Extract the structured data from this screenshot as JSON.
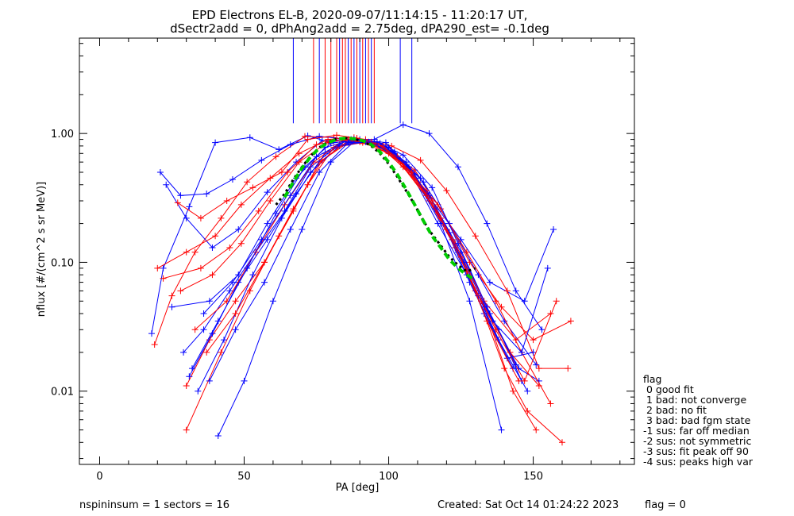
{
  "chart_data": {
    "type": "line",
    "title_line1": "EPD Electrons EL-B, 2020-09-07/11:14:15 - 11:20:17 UT,",
    "title_line2": "dSectr2add = 0, dPhAng2add = 2.75deg, dPA290_est=  -0.1deg",
    "xlabel": "PA [deg]",
    "ylabel": "nflux [#/(cm^2 s sr MeV)]",
    "xlim": [
      -7,
      185
    ],
    "ylim": [
      0.0027,
      5.5
    ],
    "yscale": "log",
    "x_ticks": [
      {
        "value": 0,
        "label": "0"
      },
      {
        "value": 50,
        "label": "50"
      },
      {
        "value": 100,
        "label": "100"
      },
      {
        "value": 150,
        "label": "150"
      }
    ],
    "y_ticks": [
      {
        "value": 0.01,
        "label": "0.01"
      },
      {
        "value": 0.1,
        "label": "0.10"
      },
      {
        "value": 1.0,
        "label": "1.00"
      }
    ],
    "series": [
      {
        "color": "#0000ff",
        "marker": "+",
        "x": [
          18,
          22,
          31,
          40,
          52,
          62,
          72,
          80,
          90,
          99,
          108,
          117,
          127,
          138,
          146
        ],
        "y": [
          0.028,
          0.09,
          0.27,
          0.85,
          0.93,
          0.75,
          0.96,
          0.85,
          0.88,
          0.8,
          0.48,
          0.2,
          0.08,
          0.03,
          0.012
        ]
      },
      {
        "color": "#ff0000",
        "marker": "+",
        "x": [
          19,
          25,
          33,
          42,
          51,
          61,
          71,
          81,
          90,
          100,
          109,
          118,
          128,
          139,
          150,
          163
        ],
        "y": [
          0.023,
          0.055,
          0.12,
          0.22,
          0.42,
          0.66,
          0.95,
          0.93,
          0.86,
          0.74,
          0.52,
          0.26,
          0.1,
          0.045,
          0.025,
          0.035
        ]
      },
      {
        "color": "#0000ff",
        "marker": "+",
        "x": [
          21,
          28,
          37,
          46,
          56,
          66,
          76,
          86,
          95,
          105,
          114,
          124,
          134,
          144,
          153
        ],
        "y": [
          0.5,
          0.33,
          0.34,
          0.44,
          0.62,
          0.82,
          0.95,
          0.9,
          0.9,
          1.17,
          1.0,
          0.55,
          0.2,
          0.06,
          0.03
        ]
      },
      {
        "color": "#0000ff",
        "marker": "+",
        "x": [
          23,
          30,
          39,
          48,
          58,
          68,
          77,
          87,
          97,
          106,
          115,
          125,
          135,
          147,
          157
        ],
        "y": [
          0.4,
          0.22,
          0.13,
          0.18,
          0.35,
          0.6,
          0.88,
          0.9,
          0.78,
          0.55,
          0.3,
          0.15,
          0.07,
          0.05,
          0.18
        ]
      },
      {
        "color": "#ff0000",
        "marker": "+",
        "x": [
          27,
          35,
          44,
          53,
          63,
          72,
          82,
          92,
          101,
          111,
          120,
          130,
          141,
          152,
          162
        ],
        "y": [
          0.29,
          0.22,
          0.3,
          0.38,
          0.5,
          0.9,
          0.97,
          0.9,
          0.8,
          0.62,
          0.36,
          0.16,
          0.06,
          0.015,
          0.015
        ]
      },
      {
        "color": "#0000ff",
        "marker": "+",
        "x": [
          29,
          36,
          45,
          54,
          64,
          73,
          83,
          93,
          102,
          112,
          121,
          131,
          140,
          151
        ],
        "y": [
          0.02,
          0.03,
          0.06,
          0.12,
          0.25,
          0.55,
          0.82,
          0.86,
          0.7,
          0.42,
          0.2,
          0.08,
          0.035,
          0.016
        ]
      },
      {
        "color": "#ff0000",
        "marker": "+",
        "x": [
          30,
          38,
          47,
          57,
          67,
          76,
          86,
          96,
          105,
          114,
          123,
          133,
          143,
          151
        ],
        "y": [
          0.011,
          0.025,
          0.05,
          0.1,
          0.25,
          0.6,
          0.85,
          0.82,
          0.55,
          0.3,
          0.13,
          0.045,
          0.01,
          0.005
        ]
      },
      {
        "color": "#0000ff",
        "marker": "+",
        "x": [
          31,
          39,
          48,
          58,
          68,
          78,
          87,
          97,
          106,
          115,
          125,
          135,
          145,
          152
        ],
        "y": [
          0.013,
          0.028,
          0.07,
          0.15,
          0.34,
          0.7,
          0.88,
          0.84,
          0.6,
          0.3,
          0.12,
          0.04,
          0.015,
          0.012
        ]
      },
      {
        "color": "#ff0000",
        "marker": "+",
        "x": [
          20,
          30,
          40,
          49,
          59,
          69,
          79,
          88,
          98,
          107,
          117,
          127,
          137,
          146,
          156
        ],
        "y": [
          0.09,
          0.12,
          0.16,
          0.28,
          0.45,
          0.7,
          0.9,
          0.93,
          0.78,
          0.52,
          0.28,
          0.12,
          0.05,
          0.02,
          0.008
        ]
      },
      {
        "color": "#0000ff",
        "marker": "+",
        "x": [
          41,
          50,
          60,
          70,
          80,
          89,
          99,
          108,
          118,
          128,
          139
        ],
        "y": [
          0.0045,
          0.012,
          0.05,
          0.18,
          0.6,
          0.9,
          0.85,
          0.5,
          0.2,
          0.05,
          0.005
        ]
      },
      {
        "color": "#ff0000",
        "marker": "+",
        "x": [
          30,
          42,
          52,
          62,
          72,
          81,
          91,
          100,
          110,
          120,
          130,
          140,
          148,
          160
        ],
        "y": [
          0.005,
          0.02,
          0.06,
          0.16,
          0.4,
          0.78,
          0.85,
          0.7,
          0.42,
          0.18,
          0.06,
          0.015,
          0.007,
          0.004
        ]
      },
      {
        "color": "#0000ff",
        "marker": "+",
        "x": [
          34,
          43,
          53,
          63,
          73,
          83,
          92,
          102,
          111,
          121,
          131,
          141,
          150
        ],
        "y": [
          0.01,
          0.025,
          0.08,
          0.22,
          0.5,
          0.8,
          0.86,
          0.72,
          0.45,
          0.17,
          0.055,
          0.018,
          0.02
        ]
      },
      {
        "color": "#ff0000",
        "marker": "+",
        "x": [
          33,
          44,
          54,
          64,
          74,
          84,
          94,
          103,
          113,
          122,
          132,
          142,
          152
        ],
        "y": [
          0.03,
          0.05,
          0.12,
          0.28,
          0.6,
          0.88,
          0.86,
          0.66,
          0.36,
          0.15,
          0.05,
          0.02,
          0.011
        ]
      },
      {
        "color": "#0000ff",
        "marker": "+",
        "x": [
          36,
          46,
          56,
          66,
          75,
          85,
          95,
          104,
          114,
          124,
          133,
          143
        ],
        "y": [
          0.04,
          0.07,
          0.15,
          0.33,
          0.66,
          0.87,
          0.84,
          0.62,
          0.33,
          0.12,
          0.04,
          0.015
        ]
      },
      {
        "color": "#ff0000",
        "marker": "+",
        "x": [
          22,
          35,
          45,
          55,
          65,
          75,
          85,
          94,
          104,
          113,
          123,
          133,
          144,
          156
        ],
        "y": [
          0.075,
          0.09,
          0.13,
          0.25,
          0.5,
          0.82,
          0.9,
          0.84,
          0.6,
          0.33,
          0.14,
          0.05,
          0.025,
          0.04
        ]
      },
      {
        "color": "#0000ff",
        "marker": "+",
        "x": [
          32,
          41,
          51,
          61,
          71,
          80,
          90,
          100,
          109,
          119,
          128,
          138,
          148
        ],
        "y": [
          0.015,
          0.035,
          0.09,
          0.24,
          0.55,
          0.84,
          0.9,
          0.78,
          0.48,
          0.2,
          0.07,
          0.025,
          0.01
        ]
      },
      {
        "color": "#ff0000",
        "marker": "+",
        "x": [
          37,
          47,
          57,
          67,
          77,
          86,
          96,
          105,
          115,
          125,
          134,
          145
        ],
        "y": [
          0.02,
          0.04,
          0.1,
          0.26,
          0.62,
          0.88,
          0.84,
          0.58,
          0.3,
          0.11,
          0.035,
          0.012
        ]
      },
      {
        "color": "#0000ff",
        "marker": "+",
        "x": [
          25,
          38,
          48,
          58,
          68,
          78,
          88,
          97,
          107,
          116,
          126,
          136,
          146,
          155
        ],
        "y": [
          0.045,
          0.05,
          0.08,
          0.2,
          0.45,
          0.78,
          0.9,
          0.82,
          0.55,
          0.26,
          0.1,
          0.035,
          0.02,
          0.09
        ]
      },
      {
        "color": "#ff0000",
        "marker": "+",
        "x": [
          28,
          39,
          49,
          59,
          69,
          79,
          89,
          98,
          108,
          118,
          127,
          137,
          147,
          158
        ],
        "y": [
          0.06,
          0.08,
          0.14,
          0.3,
          0.6,
          0.86,
          0.92,
          0.8,
          0.5,
          0.22,
          0.085,
          0.03,
          0.012,
          0.05
        ]
      },
      {
        "color": "#0000ff",
        "marker": "+",
        "x": [
          38,
          47,
          57,
          66,
          76,
          86,
          96,
          105,
          115,
          124,
          134,
          144
        ],
        "y": [
          0.012,
          0.03,
          0.07,
          0.18,
          0.5,
          0.85,
          0.86,
          0.68,
          0.38,
          0.14,
          0.045,
          0.016
        ]
      }
    ],
    "fit_curve": {
      "color": "#00cc00",
      "style": "dashed",
      "x": [
        64,
        67,
        70,
        73,
        76,
        79,
        82,
        85,
        88,
        91,
        94,
        97,
        100,
        103,
        106,
        109,
        112,
        115,
        118,
        121,
        124,
        127,
        129
      ],
      "y": [
        0.32,
        0.42,
        0.54,
        0.66,
        0.77,
        0.85,
        0.9,
        0.92,
        0.91,
        0.88,
        0.82,
        0.72,
        0.6,
        0.48,
        0.37,
        0.28,
        0.21,
        0.16,
        0.13,
        0.105,
        0.09,
        0.08,
        0.075
      ]
    },
    "fit_curve_black": {
      "color": "#000000",
      "style": "dashed",
      "x": [
        61,
        64,
        67,
        70,
        73,
        76,
        79,
        82,
        85,
        88,
        91,
        94,
        97,
        100,
        103,
        106,
        109,
        112,
        115,
        118,
        121,
        124,
        127,
        130
      ],
      "y": [
        0.28,
        0.34,
        0.44,
        0.55,
        0.67,
        0.78,
        0.86,
        0.91,
        0.92,
        0.91,
        0.87,
        0.8,
        0.7,
        0.58,
        0.46,
        0.36,
        0.28,
        0.21,
        0.165,
        0.135,
        0.11,
        0.095,
        0.085,
        0.09
      ]
    },
    "vertical_lines": {
      "top": 5.5,
      "blue": [
        {
          "x": 67,
          "y0": 1.2
        },
        {
          "x": 76,
          "y0": 1.2
        },
        {
          "x": 83,
          "y0": 1.2
        },
        {
          "x": 86,
          "y0": 1.2
        },
        {
          "x": 88,
          "y0": 1.2
        },
        {
          "x": 90,
          "y0": 1.2
        },
        {
          "x": 92,
          "y0": 1.2
        },
        {
          "x": 94,
          "y0": 1.2
        },
        {
          "x": 104,
          "y0": 1.2
        },
        {
          "x": 108,
          "y0": 1.2
        }
      ],
      "red": [
        {
          "x": 74,
          "y0": 1.2
        },
        {
          "x": 78,
          "y0": 1.2
        },
        {
          "x": 80,
          "y0": 1.2
        },
        {
          "x": 82,
          "y0": 1.2
        },
        {
          "x": 84,
          "y0": 1.2
        },
        {
          "x": 85,
          "y0": 1.2
        },
        {
          "x": 87,
          "y0": 1.2
        },
        {
          "x": 89,
          "y0": 1.2
        },
        {
          "x": 91,
          "y0": 1.2
        },
        {
          "x": 93,
          "y0": 1.2
        },
        {
          "x": 95,
          "y0": 1.2
        }
      ]
    },
    "legend_title": "flag",
    "legend": [
      " 0 good fit",
      " 1 bad: not converge",
      " 2 bad: no fit",
      " 3 bad: bad fgm state",
      "-1 sus: far off median",
      "-2 sus: not symmetric",
      "-3 sus: fit peak off 90",
      "-4 sus: peaks high var"
    ],
    "legend_placement": "right-bottom"
  },
  "footer": {
    "left": "nspininsum =  1  sectors = 16",
    "middle": "Created: Sat Oct 14 01:24:22 2023",
    "right": "flag = 0"
  }
}
